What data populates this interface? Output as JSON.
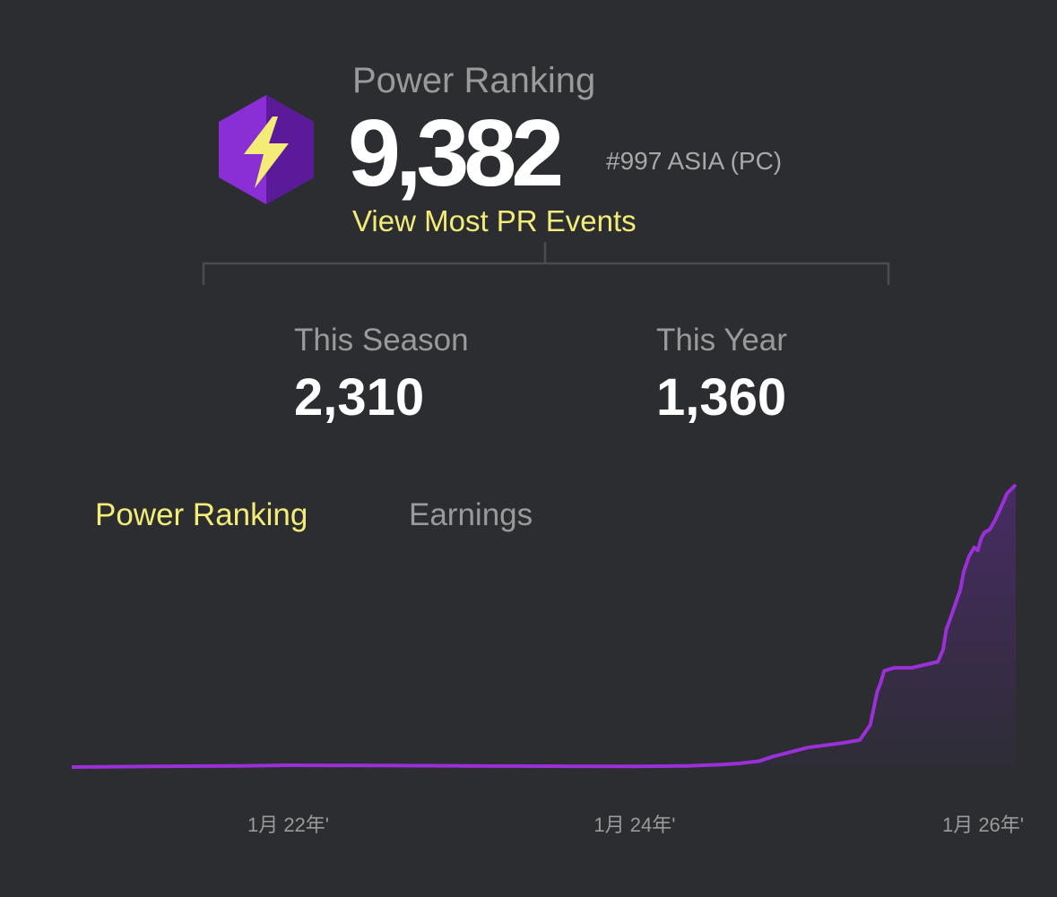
{
  "header": {
    "label": "Power Ranking",
    "value": "9,382",
    "rank": "#997 ASIA (PC)",
    "link": "View Most PR Events",
    "icon": "lightning-bolt-icon",
    "icon_colors": {
      "hex_light": "#8a2fd6",
      "hex_dark": "#5a1a9a",
      "bolt": "#f3ec77"
    }
  },
  "stats": {
    "season_label": "This Season",
    "season_value": "2,310",
    "year_label": "This Year",
    "year_value": "1,360"
  },
  "tabs": {
    "power_ranking": "Power Ranking",
    "earnings": "Earnings",
    "active": "power_ranking"
  },
  "colors": {
    "background": "#2b2d31",
    "accent_yellow": "#f3ec77",
    "line": "#9b30d9",
    "muted_text": "#9a9a9a"
  },
  "chart_data": {
    "type": "area",
    "title": "",
    "xlabel": "",
    "ylabel": "",
    "x_ticks": [
      "1月 22年'",
      "1月 24年'",
      "1月 26年'"
    ],
    "x_tick_positions": [
      2022.0,
      2024.0,
      2026.0
    ],
    "xlim": [
      2020.75,
      2026.2
    ],
    "ylim": [
      0,
      9382
    ],
    "grid": false,
    "series": [
      {
        "x": [
          2020.75,
          2021.2,
          2021.7,
          2022.0,
          2022.5,
          2023.0,
          2023.5,
          2024.0,
          2024.3,
          2024.5,
          2024.6,
          2024.72,
          2024.8,
          2024.9,
          2025.0,
          2025.2,
          2025.3,
          2025.36,
          2025.4,
          2025.42,
          2025.44,
          2025.5,
          2025.6,
          2025.75,
          2025.78,
          2025.8,
          2025.82,
          2025.85,
          2025.88,
          2025.9,
          2025.93,
          2025.96,
          2025.98,
          2026.0,
          2026.02,
          2026.05,
          2026.08,
          2026.12,
          2026.15,
          2026.2
        ],
        "y": [
          0,
          20,
          40,
          60,
          50,
          40,
          30,
          20,
          40,
          80,
          120,
          200,
          350,
          500,
          650,
          800,
          900,
          1400,
          2500,
          2800,
          3200,
          3300,
          3300,
          3500,
          3900,
          4600,
          4900,
          5400,
          5900,
          6500,
          7000,
          7300,
          7200,
          7600,
          7800,
          7900,
          8200,
          8700,
          9100,
          9382
        ]
      }
    ]
  }
}
